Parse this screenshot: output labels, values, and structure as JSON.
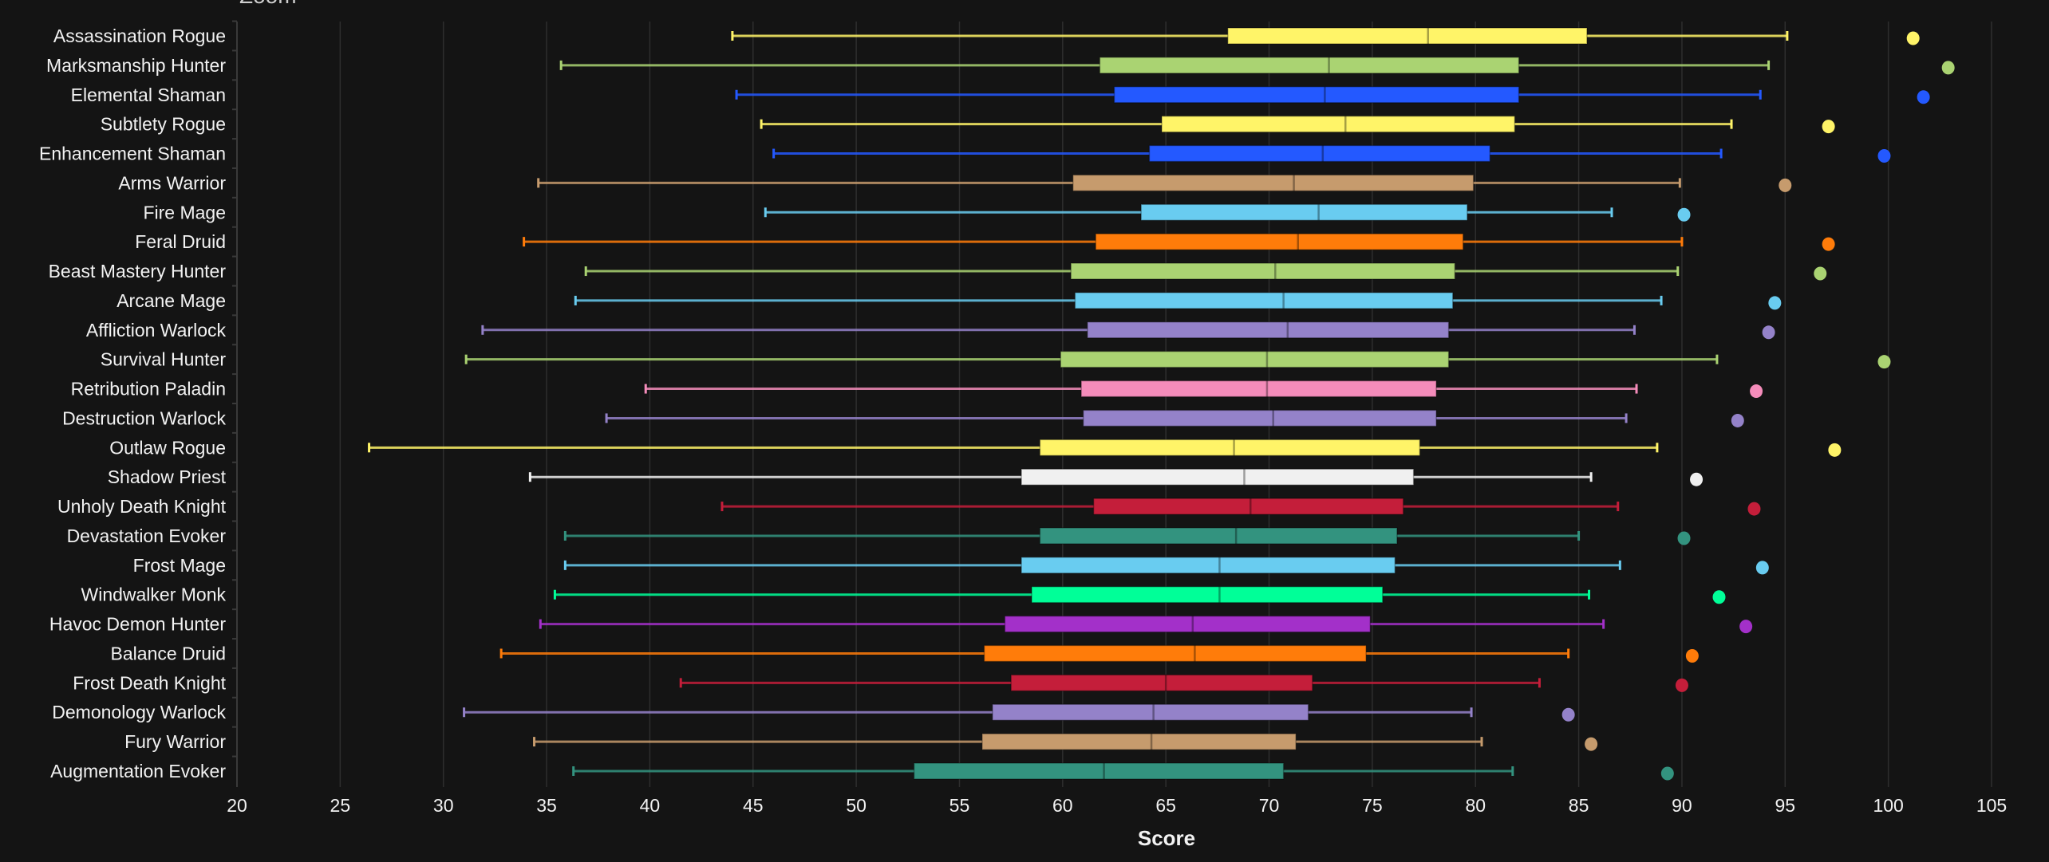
{
  "toolbar": {
    "zoom_label": "Zoom"
  },
  "chart_data": {
    "type": "boxplot-horizontal",
    "title": "",
    "xlabel": "Score",
    "ylabel": "",
    "xlim": [
      20,
      105
    ],
    "xticks": [
      20,
      25,
      30,
      35,
      40,
      45,
      50,
      55,
      60,
      65,
      70,
      75,
      80,
      85,
      90,
      95,
      100,
      105
    ],
    "grid": true,
    "series": [
      {
        "name": "Assassination Rogue",
        "color": "#FFF468",
        "min": 44.0,
        "q1": 68.0,
        "median": 77.7,
        "q3": 85.4,
        "max": 95.1,
        "outlier": 101.2
      },
      {
        "name": "Marksmanship Hunter",
        "color": "#AAD372",
        "min": 35.7,
        "q1": 61.8,
        "median": 72.9,
        "q3": 82.1,
        "max": 94.2,
        "outlier": 102.9
      },
      {
        "name": "Elemental Shaman",
        "color": "#2459FF",
        "min": 44.2,
        "q1": 62.5,
        "median": 72.7,
        "q3": 82.1,
        "max": 93.8,
        "outlier": 101.7
      },
      {
        "name": "Subtlety Rogue",
        "color": "#FFF468",
        "min": 45.4,
        "q1": 64.8,
        "median": 73.7,
        "q3": 81.9,
        "max": 92.4,
        "outlier": 97.1
      },
      {
        "name": "Enhancement Shaman",
        "color": "#2459FF",
        "min": 46.0,
        "q1": 64.2,
        "median": 72.6,
        "q3": 80.7,
        "max": 91.9,
        "outlier": 99.8
      },
      {
        "name": "Arms Warrior",
        "color": "#C69B6D",
        "min": 34.6,
        "q1": 60.5,
        "median": 71.2,
        "q3": 79.9,
        "max": 89.9,
        "outlier": 95.0
      },
      {
        "name": "Fire Mage",
        "color": "#69CCF0",
        "min": 45.6,
        "q1": 63.8,
        "median": 72.4,
        "q3": 79.6,
        "max": 86.6,
        "outlier": 90.1
      },
      {
        "name": "Feral Druid",
        "color": "#FF7C0A",
        "min": 33.9,
        "q1": 61.6,
        "median": 71.4,
        "q3": 79.4,
        "max": 90.0,
        "outlier": 97.1
      },
      {
        "name": "Beast Mastery Hunter",
        "color": "#AAD372",
        "min": 36.9,
        "q1": 60.4,
        "median": 70.3,
        "q3": 79.0,
        "max": 89.8,
        "outlier": 96.7
      },
      {
        "name": "Arcane Mage",
        "color": "#69CCF0",
        "min": 36.4,
        "q1": 60.6,
        "median": 70.7,
        "q3": 78.9,
        "max": 89.0,
        "outlier": 94.5
      },
      {
        "name": "Affliction Warlock",
        "color": "#9482C9",
        "min": 31.9,
        "q1": 61.2,
        "median": 70.9,
        "q3": 78.7,
        "max": 87.7,
        "outlier": 94.2
      },
      {
        "name": "Survival Hunter",
        "color": "#AAD372",
        "min": 31.1,
        "q1": 59.9,
        "median": 69.9,
        "q3": 78.7,
        "max": 91.7,
        "outlier": 99.8
      },
      {
        "name": "Retribution Paladin",
        "color": "#F48CBA",
        "min": 39.8,
        "q1": 60.9,
        "median": 69.9,
        "q3": 78.1,
        "max": 87.8,
        "outlier": 93.6
      },
      {
        "name": "Destruction Warlock",
        "color": "#9482C9",
        "min": 37.9,
        "q1": 61.0,
        "median": 70.2,
        "q3": 78.1,
        "max": 87.3,
        "outlier": 92.7
      },
      {
        "name": "Outlaw Rogue",
        "color": "#FFF468",
        "min": 26.4,
        "q1": 58.9,
        "median": 68.3,
        "q3": 77.3,
        "max": 88.8,
        "outlier": 97.4
      },
      {
        "name": "Shadow Priest",
        "color": "#F0F0F0",
        "min": 34.2,
        "q1": 58.0,
        "median": 68.8,
        "q3": 77.0,
        "max": 85.6,
        "outlier": 90.7
      },
      {
        "name": "Unholy Death Knight",
        "color": "#C41E3A",
        "min": 43.5,
        "q1": 61.5,
        "median": 69.1,
        "q3": 76.5,
        "max": 86.9,
        "outlier": 93.5
      },
      {
        "name": "Devastation Evoker",
        "color": "#33937F",
        "min": 35.9,
        "q1": 58.9,
        "median": 68.4,
        "q3": 76.2,
        "max": 85.0,
        "outlier": 90.1
      },
      {
        "name": "Frost Mage",
        "color": "#69CCF0",
        "min": 35.9,
        "q1": 58.0,
        "median": 67.6,
        "q3": 76.1,
        "max": 87.0,
        "outlier": 93.9
      },
      {
        "name": "Windwalker Monk",
        "color": "#00FF98",
        "min": 35.4,
        "q1": 58.5,
        "median": 67.6,
        "q3": 75.5,
        "max": 85.5,
        "outlier": 91.8
      },
      {
        "name": "Havoc Demon Hunter",
        "color": "#A330C9",
        "min": 34.7,
        "q1": 57.2,
        "median": 66.3,
        "q3": 74.9,
        "max": 86.2,
        "outlier": 93.1
      },
      {
        "name": "Balance Druid",
        "color": "#FF7C0A",
        "min": 32.8,
        "q1": 56.2,
        "median": 66.4,
        "q3": 74.7,
        "max": 84.5,
        "outlier": 90.5
      },
      {
        "name": "Frost Death Knight",
        "color": "#C41E3A",
        "min": 41.5,
        "q1": 57.5,
        "median": 65.0,
        "q3": 72.1,
        "max": 83.1,
        "outlier": 90.0
      },
      {
        "name": "Demonology Warlock",
        "color": "#9482C9",
        "min": 31.0,
        "q1": 56.6,
        "median": 64.4,
        "q3": 71.9,
        "max": 79.8,
        "outlier": 84.5
      },
      {
        "name": "Fury Warrior",
        "color": "#C69B6D",
        "min": 34.4,
        "q1": 56.1,
        "median": 64.3,
        "q3": 71.3,
        "max": 80.3,
        "outlier": 85.6
      },
      {
        "name": "Augmentation Evoker",
        "color": "#33937F",
        "min": 36.3,
        "q1": 52.8,
        "median": 62.0,
        "q3": 70.7,
        "max": 81.8,
        "outlier": 89.3
      }
    ]
  }
}
